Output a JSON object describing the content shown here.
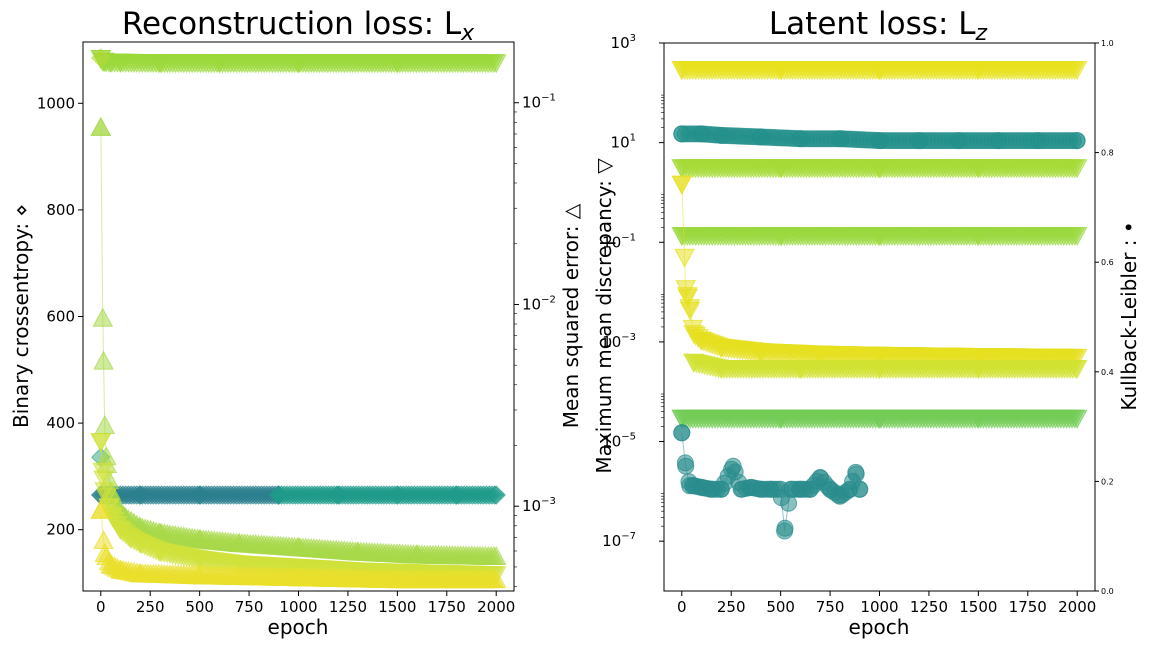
{
  "chart_data": [
    {
      "type": "scatter",
      "title": "Reconstruction loss: L",
      "title_subscript": "x",
      "xlabel": "epoch",
      "ylabel_left": "Binary crossentropy: ⋄",
      "ylabel_right": "Mean squared error: △",
      "xlim": [
        -90,
        2090
      ],
      "ylim_left": [
        85,
        1115
      ],
      "ylim_right": [
        0.00038,
        0.2
      ],
      "right_scale": "log",
      "grid": false,
      "xticks": [
        "0",
        "250",
        "500",
        "750",
        "1000",
        "1250",
        "1500",
        "1750",
        "2000"
      ],
      "yticks_left": [
        "200",
        "400",
        "600",
        "800",
        "1000"
      ],
      "yticks_right": [
        "10",
        "10",
        "10"
      ],
      "yticks_right_exp": [
        "−3",
        "−2",
        "−1"
      ],
      "series": [
        {
          "marker": "triangle-down",
          "axis": "left",
          "color": "#9bd83a",
          "x": [
            0,
            10,
            20,
            50,
            100,
            300,
            600,
            1000,
            1500,
            2000
          ],
          "y": [
            1085,
            1080,
            1079,
            1078,
            1078,
            1077,
            1077,
            1077,
            1077,
            1077
          ]
        },
        {
          "marker": "diamond",
          "axis": "left",
          "color": "#2b7f8e",
          "x": [
            0,
            50,
            200,
            500,
            900
          ],
          "y": [
            265,
            265,
            265,
            265,
            265
          ]
        },
        {
          "marker": "diamond",
          "axis": "left",
          "color": "#1f9a8a",
          "x": [
            900,
            1200,
            1500,
            1800,
            2000
          ],
          "y": [
            265,
            265,
            265,
            265,
            265
          ]
        },
        {
          "marker": "diamond",
          "axis": "left",
          "color": "#b6d83c",
          "x": [
            0
          ],
          "y": [
            1085
          ]
        },
        {
          "marker": "diamond",
          "axis": "left",
          "color": "#3fa88b",
          "x": [
            0
          ],
          "y": [
            336
          ]
        },
        {
          "marker": "triangle-up",
          "axis": "right",
          "color": "#a7d949",
          "x": [
            0,
            10,
            20,
            30,
            50,
            80,
            120,
            200,
            300,
            500,
            700,
            1000,
            1300,
            1600,
            2000
          ],
          "y": [
            0.075,
            0.0085,
            0.0025,
            0.0016,
            0.00118,
            0.00098,
            0.00088,
            0.00078,
            0.00073,
            0.00068,
            0.00065,
            0.00062,
            0.00059,
            0.00057,
            0.00056
          ]
        },
        {
          "marker": "triangle-down",
          "axis": "right",
          "color": "#d0e13a",
          "x": [
            0,
            10,
            20,
            40,
            60,
            100,
            150,
            200,
            300,
            500,
            700,
            1000,
            1300,
            1600,
            2000
          ],
          "y": [
            0.0021,
            0.0015,
            0.0012,
            0.001,
            0.00089,
            0.00077,
            0.0007,
            0.00066,
            0.0006,
            0.00055,
            0.00052,
            0.0005,
            0.00048,
            0.00047,
            0.00046
          ]
        },
        {
          "marker": "triangle-up",
          "axis": "right",
          "color": "#eadf29",
          "x": [
            0,
            20,
            50,
            100,
            200,
            500,
            1000,
            1500,
            2000
          ],
          "y": [
            0.00095,
            0.00058,
            0.00051,
            0.00048,
            0.00046,
            0.00045,
            0.00044,
            0.00043,
            0.00043
          ]
        }
      ]
    },
    {
      "type": "scatter",
      "title": "Latent loss: L",
      "title_subscript": "z",
      "xlabel": "epoch",
      "ylabel_left": "Maximum mean discrepancy: ▽",
      "ylabel_right": "Kullback-Leibler : •",
      "xlim": [
        -90,
        2090
      ],
      "ylim_left": [
        1e-08,
        1000
      ],
      "left_scale": "log",
      "ylim_right": [
        0,
        1
      ],
      "grid": false,
      "xticks": [
        "0",
        "250",
        "500",
        "750",
        "1000",
        "1250",
        "1500",
        "1750",
        "2000"
      ],
      "yticks_left": [
        "10",
        "10",
        "10",
        "10",
        "10",
        "10"
      ],
      "yticks_left_exp": [
        "−7",
        "−5",
        "−3",
        "−1",
        "1",
        "3"
      ],
      "yticks_right": [
        "0.0",
        "0.2",
        "0.4",
        "0.6",
        "0.8",
        "1.0"
      ],
      "series": [
        {
          "marker": "triangle-down",
          "axis": "left",
          "color": "#e8e21e",
          "x": [
            0,
            500,
            1000,
            1500,
            2000
          ],
          "y": [
            300,
            300,
            300,
            300,
            300
          ]
        },
        {
          "marker": "circle",
          "axis": "left",
          "color": "#238f8b",
          "x": [
            0,
            100,
            200,
            400,
            600,
            800,
            1000,
            1200,
            1400,
            1600,
            1800,
            2000
          ],
          "y": [
            15,
            15,
            14,
            13,
            12,
            12,
            11,
            11,
            11,
            11,
            11,
            11
          ]
        },
        {
          "marker": "triangle-down",
          "axis": "left",
          "color": "#a5db36",
          "x": [
            0,
            500,
            1000,
            1500,
            2000
          ],
          "y": [
            3.2,
            3.2,
            3.2,
            3.2,
            3.2
          ]
        },
        {
          "marker": "triangle-down",
          "axis": "left",
          "color": "#9ad83e",
          "x": [
            0,
            500,
            1000,
            1500,
            2000
          ],
          "y": [
            0.14,
            0.14,
            0.14,
            0.14,
            0.14
          ]
        },
        {
          "marker": "triangle-down",
          "axis": "left",
          "color": "#e5e01f",
          "x": [
            0,
            20,
            30,
            40,
            60,
            100,
            200,
            400,
            700,
            1000,
            1500,
            2000
          ],
          "y": [
            1.5,
            0.012,
            0.008,
            0.005,
            0.0015,
            0.0011,
            0.0008,
            0.00065,
            0.00058,
            0.00055,
            0.00052,
            0.0005
          ]
        },
        {
          "marker": "triangle-down",
          "axis": "left",
          "color": "#d2e231",
          "x": [
            60,
            200,
            600,
            1000,
            1500,
            2000
          ],
          "y": [
            0.0004,
            0.0003,
            0.0003,
            0.0003,
            0.0003,
            0.0003
          ]
        },
        {
          "marker": "triangle-down",
          "axis": "left",
          "color": "#72cc55",
          "x": [
            0,
            500,
            1000,
            1500,
            2000
          ],
          "y": [
            3e-05,
            3e-05,
            3e-05,
            3e-05,
            3e-05
          ]
        },
        {
          "marker": "circle",
          "axis": "left",
          "color": "#2a8c8d",
          "x": [
            0,
            20,
            40,
            60,
            100,
            150,
            200,
            260,
            300,
            350,
            400,
            450,
            500,
            520,
            550,
            600,
            650,
            700,
            750,
            800,
            850,
            880,
            900
          ],
          "y": [
            1.5e-05,
            3.2e-06,
            1.3e-06,
            1.3e-06,
            1.2e-06,
            1.1e-06,
            1.1e-06,
            3.2e-06,
            1.1e-06,
            1.2e-06,
            1.1e-06,
            1.1e-06,
            1.1e-06,
            1.6e-07,
            1.1e-06,
            1.1e-06,
            1.1e-06,
            1.9e-06,
            1.1e-06,
            8e-07,
            1.1e-06,
            2.4e-06,
            1.1e-06
          ]
        }
      ]
    }
  ]
}
